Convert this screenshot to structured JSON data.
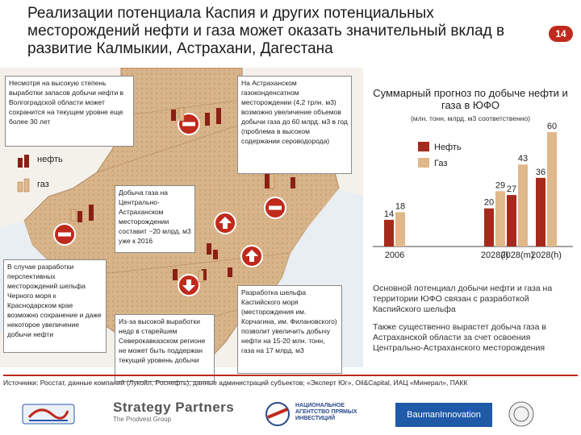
{
  "header": {
    "title": "Реализации потенциала Каспия и других потенциальных месторождений нефти и газа может оказать значительный вклад в развитие Калмыкии, Астрахани, Дагестана",
    "page_number": "14"
  },
  "map": {
    "legend": {
      "oil_label": "нефть",
      "gas_label": "газ"
    },
    "notes": {
      "volga": "Несмотря на высокую степень выработки запасов добычи нефти в Волгоградской области может сохранится на текущем уровне еще более 30 лет",
      "astrakhan": "На Астраханском газоконденсатном месторождении (4,2 трлн. м3) возможно увеличение объемов добычи газа до 60 млрд. м3 в год (проблема в высоком содержании сероводорода)",
      "central_astrakhan": "Добыча газа на Центрально-Астраханском месторождении составит ~20 млрд. м3 уже к 2016",
      "black_sea": "В случае разработки перспективных месторождений шельфа Черного моря к Краснодарском крае возможно сохранение и даже некоторое увеличение добычи нефти",
      "north_caucasus": "Из-за высокой выработки недр в старейшем Северокавказском регионе не может быть поддержан текущий уровень добычи",
      "caspian_shelf": "Разработка шельфа Каспийского моря (месторождения им. Корчагина, им. Филановского) позволит увеличить добычу нефти на 15-20 млн. тонн, газа на 17 млрд. м3"
    }
  },
  "chart_data": {
    "type": "bar",
    "title": "Суммарный прогноз по добыче нефти и газа в ЮФО",
    "subtitle": "(млн. тонн, млрд. м3 соответственно)",
    "categories": [
      "2006",
      "2028(l)",
      "2028(m)",
      "2028(h)"
    ],
    "series": [
      {
        "name": "Нефть",
        "values": [
          14,
          20,
          27,
          36
        ]
      },
      {
        "name": "Газ",
        "values": [
          18,
          29,
          43,
          60
        ]
      }
    ],
    "colors": {
      "oil": "#a52a1c",
      "gas": "#e0b88a"
    }
  },
  "bullets": [
    "Основной потенциал добычи нефти и газа на территории ЮФО связан с разработкой Каспийского шельфа",
    "Также существенно вырастет добыча газа в Астраханской области за счет освоения Центрально-Астраханского месторождения"
  ],
  "sources": "Источники: Росстат, данные компаний (Лукойл, Роснефть), данные администраций субъектов; «Эксперт Юг», Oil&Capital, ИАЦ «Минерал», ПАКК",
  "logos": {
    "strategy_partners": "Strategy Partners",
    "strategy_partners_sub": "The Prodvest Group",
    "nai": "НАЦИОНАЛЬНОЕ АГЕНТСТВО ПРЯМЫХ ИНВЕСТИЦИЙ",
    "bauman": "BaumanInnovation"
  }
}
